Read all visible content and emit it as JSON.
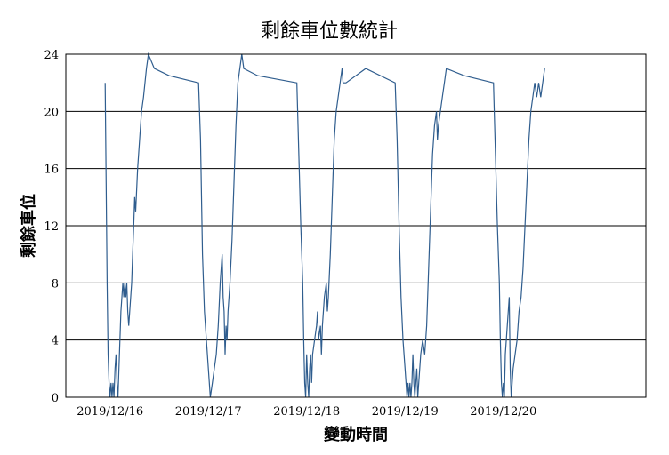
{
  "chart_data": {
    "type": "line",
    "title": "剩餘車位數統計",
    "xlabel": "變動時間",
    "ylabel": "剩餘車位",
    "ylim": [
      0,
      24
    ],
    "yticks": [
      0,
      4,
      8,
      12,
      16,
      20,
      24
    ],
    "xticks": [
      "2019/12/16",
      "2019/12/17",
      "2019/12/18",
      "2019/12/19",
      "2019/12/20"
    ],
    "xrange_days": [
      -0.45,
      5.45
    ],
    "grid": "horizontal",
    "legend": "none",
    "line_color": "#2f5d8e",
    "series": [
      {
        "points": [
          [
            -0.05,
            22
          ],
          [
            -0.04,
            15
          ],
          [
            -0.03,
            8
          ],
          [
            -0.02,
            3
          ],
          [
            -0.01,
            1
          ],
          [
            0.0,
            0
          ],
          [
            0.01,
            1
          ],
          [
            0.02,
            0
          ],
          [
            0.03,
            1
          ],
          [
            0.04,
            0
          ],
          [
            0.05,
            2
          ],
          [
            0.06,
            3
          ],
          [
            0.07,
            1
          ],
          [
            0.08,
            0
          ],
          [
            0.09,
            2
          ],
          [
            0.1,
            4
          ],
          [
            0.11,
            6
          ],
          [
            0.12,
            7
          ],
          [
            0.13,
            8
          ],
          [
            0.14,
            7
          ],
          [
            0.15,
            8
          ],
          [
            0.16,
            7
          ],
          [
            0.17,
            8
          ],
          [
            0.18,
            6
          ],
          [
            0.19,
            5
          ],
          [
            0.2,
            6
          ],
          [
            0.21,
            7
          ],
          [
            0.22,
            8
          ],
          [
            0.23,
            10
          ],
          [
            0.24,
            12
          ],
          [
            0.25,
            14
          ],
          [
            0.26,
            13
          ],
          [
            0.28,
            16
          ],
          [
            0.3,
            18
          ],
          [
            0.32,
            20
          ],
          [
            0.34,
            21
          ],
          [
            0.37,
            23
          ],
          [
            0.39,
            24
          ],
          [
            0.45,
            23
          ],
          [
            0.6,
            22.5
          ],
          [
            0.9,
            22
          ],
          [
            0.92,
            18
          ],
          [
            0.94,
            10
          ],
          [
            0.96,
            6
          ],
          [
            0.98,
            4
          ],
          [
            1.0,
            2
          ],
          [
            1.01,
            1
          ],
          [
            1.02,
            0
          ],
          [
            1.04,
            1
          ],
          [
            1.06,
            2
          ],
          [
            1.08,
            3
          ],
          [
            1.1,
            5
          ],
          [
            1.12,
            8
          ],
          [
            1.14,
            10
          ],
          [
            1.15,
            7
          ],
          [
            1.16,
            6
          ],
          [
            1.17,
            3
          ],
          [
            1.18,
            5
          ],
          [
            1.19,
            4
          ],
          [
            1.2,
            6
          ],
          [
            1.22,
            8
          ],
          [
            1.24,
            11
          ],
          [
            1.26,
            15
          ],
          [
            1.28,
            19
          ],
          [
            1.3,
            22
          ],
          [
            1.32,
            23
          ],
          [
            1.34,
            24
          ],
          [
            1.36,
            23
          ],
          [
            1.5,
            22.5
          ],
          [
            1.9,
            22
          ],
          [
            1.92,
            17
          ],
          [
            1.94,
            12
          ],
          [
            1.96,
            8
          ],
          [
            1.97,
            4
          ],
          [
            1.98,
            1
          ],
          [
            1.99,
            0
          ],
          [
            2.0,
            3
          ],
          [
            2.01,
            1
          ],
          [
            2.02,
            0
          ],
          [
            2.03,
            2
          ],
          [
            2.04,
            3
          ],
          [
            2.05,
            1
          ],
          [
            2.06,
            3
          ],
          [
            2.08,
            4
          ],
          [
            2.1,
            5
          ],
          [
            2.11,
            6
          ],
          [
            2.12,
            4
          ],
          [
            2.14,
            5
          ],
          [
            2.15,
            3
          ],
          [
            2.16,
            5
          ],
          [
            2.18,
            7
          ],
          [
            2.2,
            8
          ],
          [
            2.21,
            6
          ],
          [
            2.22,
            7
          ],
          [
            2.24,
            10
          ],
          [
            2.26,
            14
          ],
          [
            2.28,
            18
          ],
          [
            2.3,
            20
          ],
          [
            2.32,
            21
          ],
          [
            2.34,
            22
          ],
          [
            2.36,
            23
          ],
          [
            2.37,
            22
          ],
          [
            2.4,
            22
          ],
          [
            2.6,
            23
          ],
          [
            2.9,
            22
          ],
          [
            2.92,
            18
          ],
          [
            2.94,
            12
          ],
          [
            2.96,
            7
          ],
          [
            2.98,
            4
          ],
          [
            3.0,
            2
          ],
          [
            3.01,
            1
          ],
          [
            3.02,
            0
          ],
          [
            3.03,
            1
          ],
          [
            3.04,
            0
          ],
          [
            3.05,
            1
          ],
          [
            3.06,
            0
          ],
          [
            3.07,
            1
          ],
          [
            3.08,
            3
          ],
          [
            3.09,
            1
          ],
          [
            3.1,
            0
          ],
          [
            3.11,
            1
          ],
          [
            3.12,
            2
          ],
          [
            3.13,
            0
          ],
          [
            3.14,
            1
          ],
          [
            3.16,
            3
          ],
          [
            3.18,
            4
          ],
          [
            3.2,
            3
          ],
          [
            3.22,
            5
          ],
          [
            3.24,
            9
          ],
          [
            3.26,
            13
          ],
          [
            3.28,
            17
          ],
          [
            3.3,
            19
          ],
          [
            3.32,
            20
          ],
          [
            3.33,
            18
          ],
          [
            3.34,
            19
          ],
          [
            3.36,
            20
          ],
          [
            3.38,
            21
          ],
          [
            3.4,
            22
          ],
          [
            3.42,
            23
          ],
          [
            3.6,
            22.5
          ],
          [
            3.9,
            22
          ],
          [
            3.92,
            17
          ],
          [
            3.94,
            12
          ],
          [
            3.96,
            8
          ],
          [
            3.97,
            4
          ],
          [
            3.98,
            1
          ],
          [
            3.99,
            0
          ],
          [
            4.0,
            1
          ],
          [
            4.01,
            0
          ],
          [
            4.02,
            3
          ],
          [
            4.03,
            4
          ],
          [
            4.04,
            5
          ],
          [
            4.05,
            6
          ],
          [
            4.06,
            7
          ],
          [
            4.07,
            2
          ],
          [
            4.08,
            0
          ],
          [
            4.09,
            1
          ],
          [
            4.1,
            2
          ],
          [
            4.12,
            3
          ],
          [
            4.14,
            4
          ],
          [
            4.16,
            6
          ],
          [
            4.18,
            7
          ],
          [
            4.2,
            9
          ],
          [
            4.22,
            12
          ],
          [
            4.24,
            15
          ],
          [
            4.26,
            18
          ],
          [
            4.28,
            20
          ],
          [
            4.3,
            21
          ],
          [
            4.32,
            22
          ],
          [
            4.34,
            21
          ],
          [
            4.36,
            22
          ],
          [
            4.38,
            21
          ],
          [
            4.4,
            22
          ],
          [
            4.42,
            23
          ]
        ]
      }
    ]
  }
}
